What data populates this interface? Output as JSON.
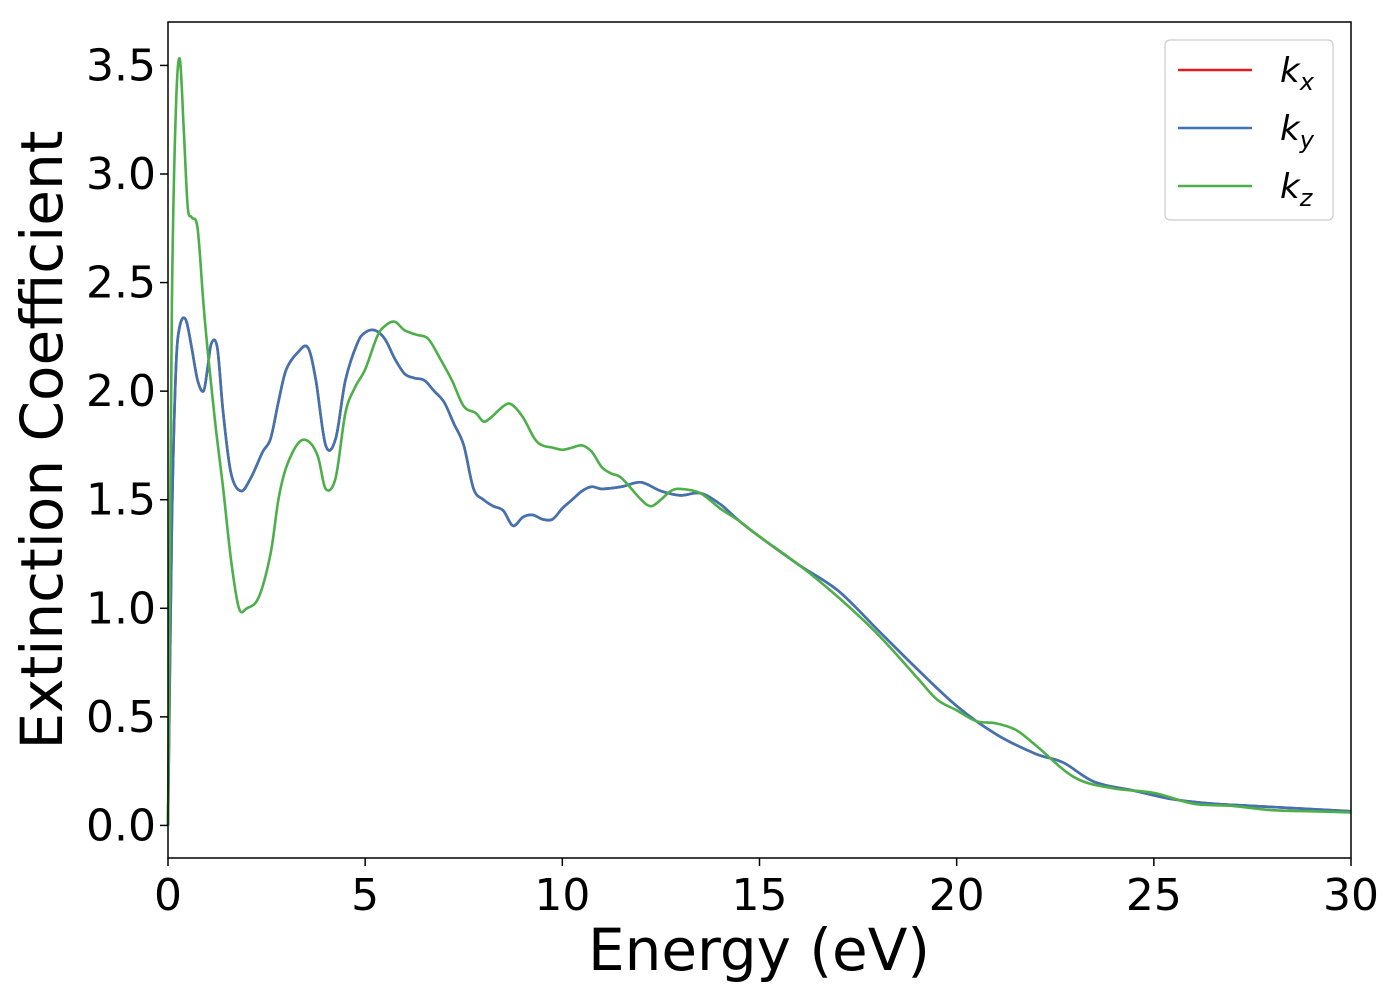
{
  "chart_data": {
    "type": "line",
    "xlabel": "Energy (eV)",
    "ylabel": "Extinction Coefficient",
    "xlim": [
      0,
      30
    ],
    "ylim": [
      -0.15,
      3.7
    ],
    "x_ticks": [
      "0",
      "5",
      "10",
      "15",
      "20",
      "25",
      "30"
    ],
    "y_ticks": [
      "0.0",
      "0.5",
      "1.0",
      "1.5",
      "2.0",
      "2.5",
      "3.0",
      "3.5"
    ],
    "grid": false,
    "legend_position": "top-right",
    "series": [
      {
        "name": "k",
        "sub": "x",
        "color": "#e41a1c",
        "x": [
          0,
          0.1,
          0.2,
          0.3,
          0.45,
          0.6,
          0.75,
          0.9,
          1.0,
          1.1,
          1.25,
          1.4,
          1.6,
          1.85,
          2.1,
          2.4,
          2.6,
          2.8,
          3.0,
          3.3,
          3.55,
          3.75,
          4.0,
          4.25,
          4.5,
          4.8,
          5.0,
          5.25,
          5.5,
          5.75,
          6.0,
          6.25,
          6.5,
          6.75,
          7.0,
          7.25,
          7.5,
          7.75,
          8.0,
          8.25,
          8.5,
          8.75,
          9.0,
          9.25,
          9.5,
          9.75,
          10.0,
          10.25,
          10.5,
          10.75,
          11.0,
          11.5,
          12.0,
          12.5,
          13.0,
          13.5,
          14.0,
          14.5,
          15.0,
          16.0,
          17.0,
          18.0,
          19.0,
          20.0,
          21.0,
          22.0,
          22.7,
          23.5,
          24.5,
          25.5,
          26.5,
          27.5,
          28.5,
          29.5,
          30.0
        ],
        "y": [
          0,
          1.4,
          2.1,
          2.3,
          2.33,
          2.2,
          2.05,
          2.0,
          2.1,
          2.22,
          2.2,
          1.9,
          1.62,
          1.54,
          1.6,
          1.72,
          1.78,
          1.95,
          2.1,
          2.18,
          2.2,
          2.05,
          1.75,
          1.78,
          2.05,
          2.22,
          2.27,
          2.28,
          2.24,
          2.15,
          2.08,
          2.06,
          2.05,
          2.0,
          1.95,
          1.85,
          1.75,
          1.55,
          1.5,
          1.47,
          1.45,
          1.38,
          1.42,
          1.43,
          1.41,
          1.41,
          1.46,
          1.5,
          1.54,
          1.56,
          1.55,
          1.56,
          1.58,
          1.54,
          1.52,
          1.53,
          1.48,
          1.4,
          1.33,
          1.2,
          1.08,
          0.9,
          0.72,
          0.55,
          0.42,
          0.33,
          0.29,
          0.2,
          0.16,
          0.12,
          0.1,
          0.09,
          0.08,
          0.07,
          0.065
        ]
      },
      {
        "name": "k",
        "sub": "y",
        "color": "#3f74b2",
        "x": [
          0,
          0.1,
          0.2,
          0.3,
          0.45,
          0.6,
          0.75,
          0.9,
          1.0,
          1.1,
          1.25,
          1.4,
          1.6,
          1.85,
          2.1,
          2.4,
          2.6,
          2.8,
          3.0,
          3.3,
          3.55,
          3.75,
          4.0,
          4.25,
          4.5,
          4.8,
          5.0,
          5.25,
          5.5,
          5.75,
          6.0,
          6.25,
          6.5,
          6.75,
          7.0,
          7.25,
          7.5,
          7.75,
          8.0,
          8.25,
          8.5,
          8.75,
          9.0,
          9.25,
          9.5,
          9.75,
          10.0,
          10.25,
          10.5,
          10.75,
          11.0,
          11.5,
          12.0,
          12.5,
          13.0,
          13.5,
          14.0,
          14.5,
          15.0,
          16.0,
          17.0,
          18.0,
          19.0,
          20.0,
          21.0,
          22.0,
          22.7,
          23.5,
          24.5,
          25.5,
          26.5,
          27.5,
          28.5,
          29.5,
          30.0
        ],
        "y": [
          0,
          1.4,
          2.1,
          2.3,
          2.33,
          2.2,
          2.05,
          2.0,
          2.1,
          2.22,
          2.2,
          1.9,
          1.62,
          1.54,
          1.6,
          1.72,
          1.78,
          1.95,
          2.1,
          2.18,
          2.2,
          2.05,
          1.75,
          1.78,
          2.05,
          2.22,
          2.27,
          2.28,
          2.24,
          2.15,
          2.08,
          2.06,
          2.05,
          2.0,
          1.95,
          1.85,
          1.75,
          1.55,
          1.5,
          1.47,
          1.45,
          1.38,
          1.42,
          1.43,
          1.41,
          1.41,
          1.46,
          1.5,
          1.54,
          1.56,
          1.55,
          1.56,
          1.58,
          1.54,
          1.52,
          1.53,
          1.48,
          1.4,
          1.33,
          1.2,
          1.08,
          0.9,
          0.72,
          0.55,
          0.42,
          0.33,
          0.29,
          0.2,
          0.16,
          0.12,
          0.1,
          0.09,
          0.08,
          0.07,
          0.065
        ]
      },
      {
        "name": "k",
        "sub": "z",
        "color": "#4daf4a",
        "x": [
          0,
          0.1,
          0.2,
          0.3,
          0.4,
          0.5,
          0.6,
          0.75,
          0.9,
          1.0,
          1.2,
          1.4,
          1.6,
          1.8,
          2.0,
          2.3,
          2.6,
          2.8,
          3.0,
          3.3,
          3.55,
          3.8,
          4.0,
          4.25,
          4.5,
          4.75,
          5.0,
          5.3,
          5.5,
          5.75,
          6.0,
          6.3,
          6.6,
          6.9,
          7.2,
          7.5,
          7.8,
          8.0,
          8.2,
          8.5,
          8.7,
          9.0,
          9.3,
          9.5,
          9.75,
          10.0,
          10.25,
          10.5,
          10.75,
          11.0,
          11.25,
          11.5,
          12.0,
          12.25,
          12.5,
          12.75,
          13.0,
          13.5,
          14.0,
          14.5,
          15.0,
          16.0,
          17.0,
          18.0,
          19.0,
          19.5,
          20.0,
          20.5,
          21.0,
          21.5,
          22.0,
          23.0,
          24.0,
          25.0,
          26.0,
          27.0,
          28.0,
          29.0,
          30.0
        ],
        "y": [
          0,
          2.4,
          3.3,
          3.53,
          3.2,
          2.85,
          2.8,
          2.75,
          2.4,
          2.2,
          1.85,
          1.55,
          1.22,
          1.0,
          1.0,
          1.05,
          1.25,
          1.5,
          1.65,
          1.76,
          1.77,
          1.7,
          1.55,
          1.6,
          1.9,
          2.02,
          2.1,
          2.25,
          2.3,
          2.32,
          2.28,
          2.26,
          2.24,
          2.15,
          2.05,
          1.93,
          1.9,
          1.86,
          1.88,
          1.93,
          1.94,
          1.88,
          1.78,
          1.75,
          1.74,
          1.73,
          1.74,
          1.75,
          1.72,
          1.65,
          1.62,
          1.6,
          1.5,
          1.47,
          1.5,
          1.54,
          1.55,
          1.53,
          1.46,
          1.4,
          1.33,
          1.2,
          1.05,
          0.88,
          0.68,
          0.58,
          0.53,
          0.48,
          0.47,
          0.44,
          0.37,
          0.22,
          0.17,
          0.15,
          0.1,
          0.09,
          0.07,
          0.065,
          0.06
        ]
      }
    ]
  }
}
